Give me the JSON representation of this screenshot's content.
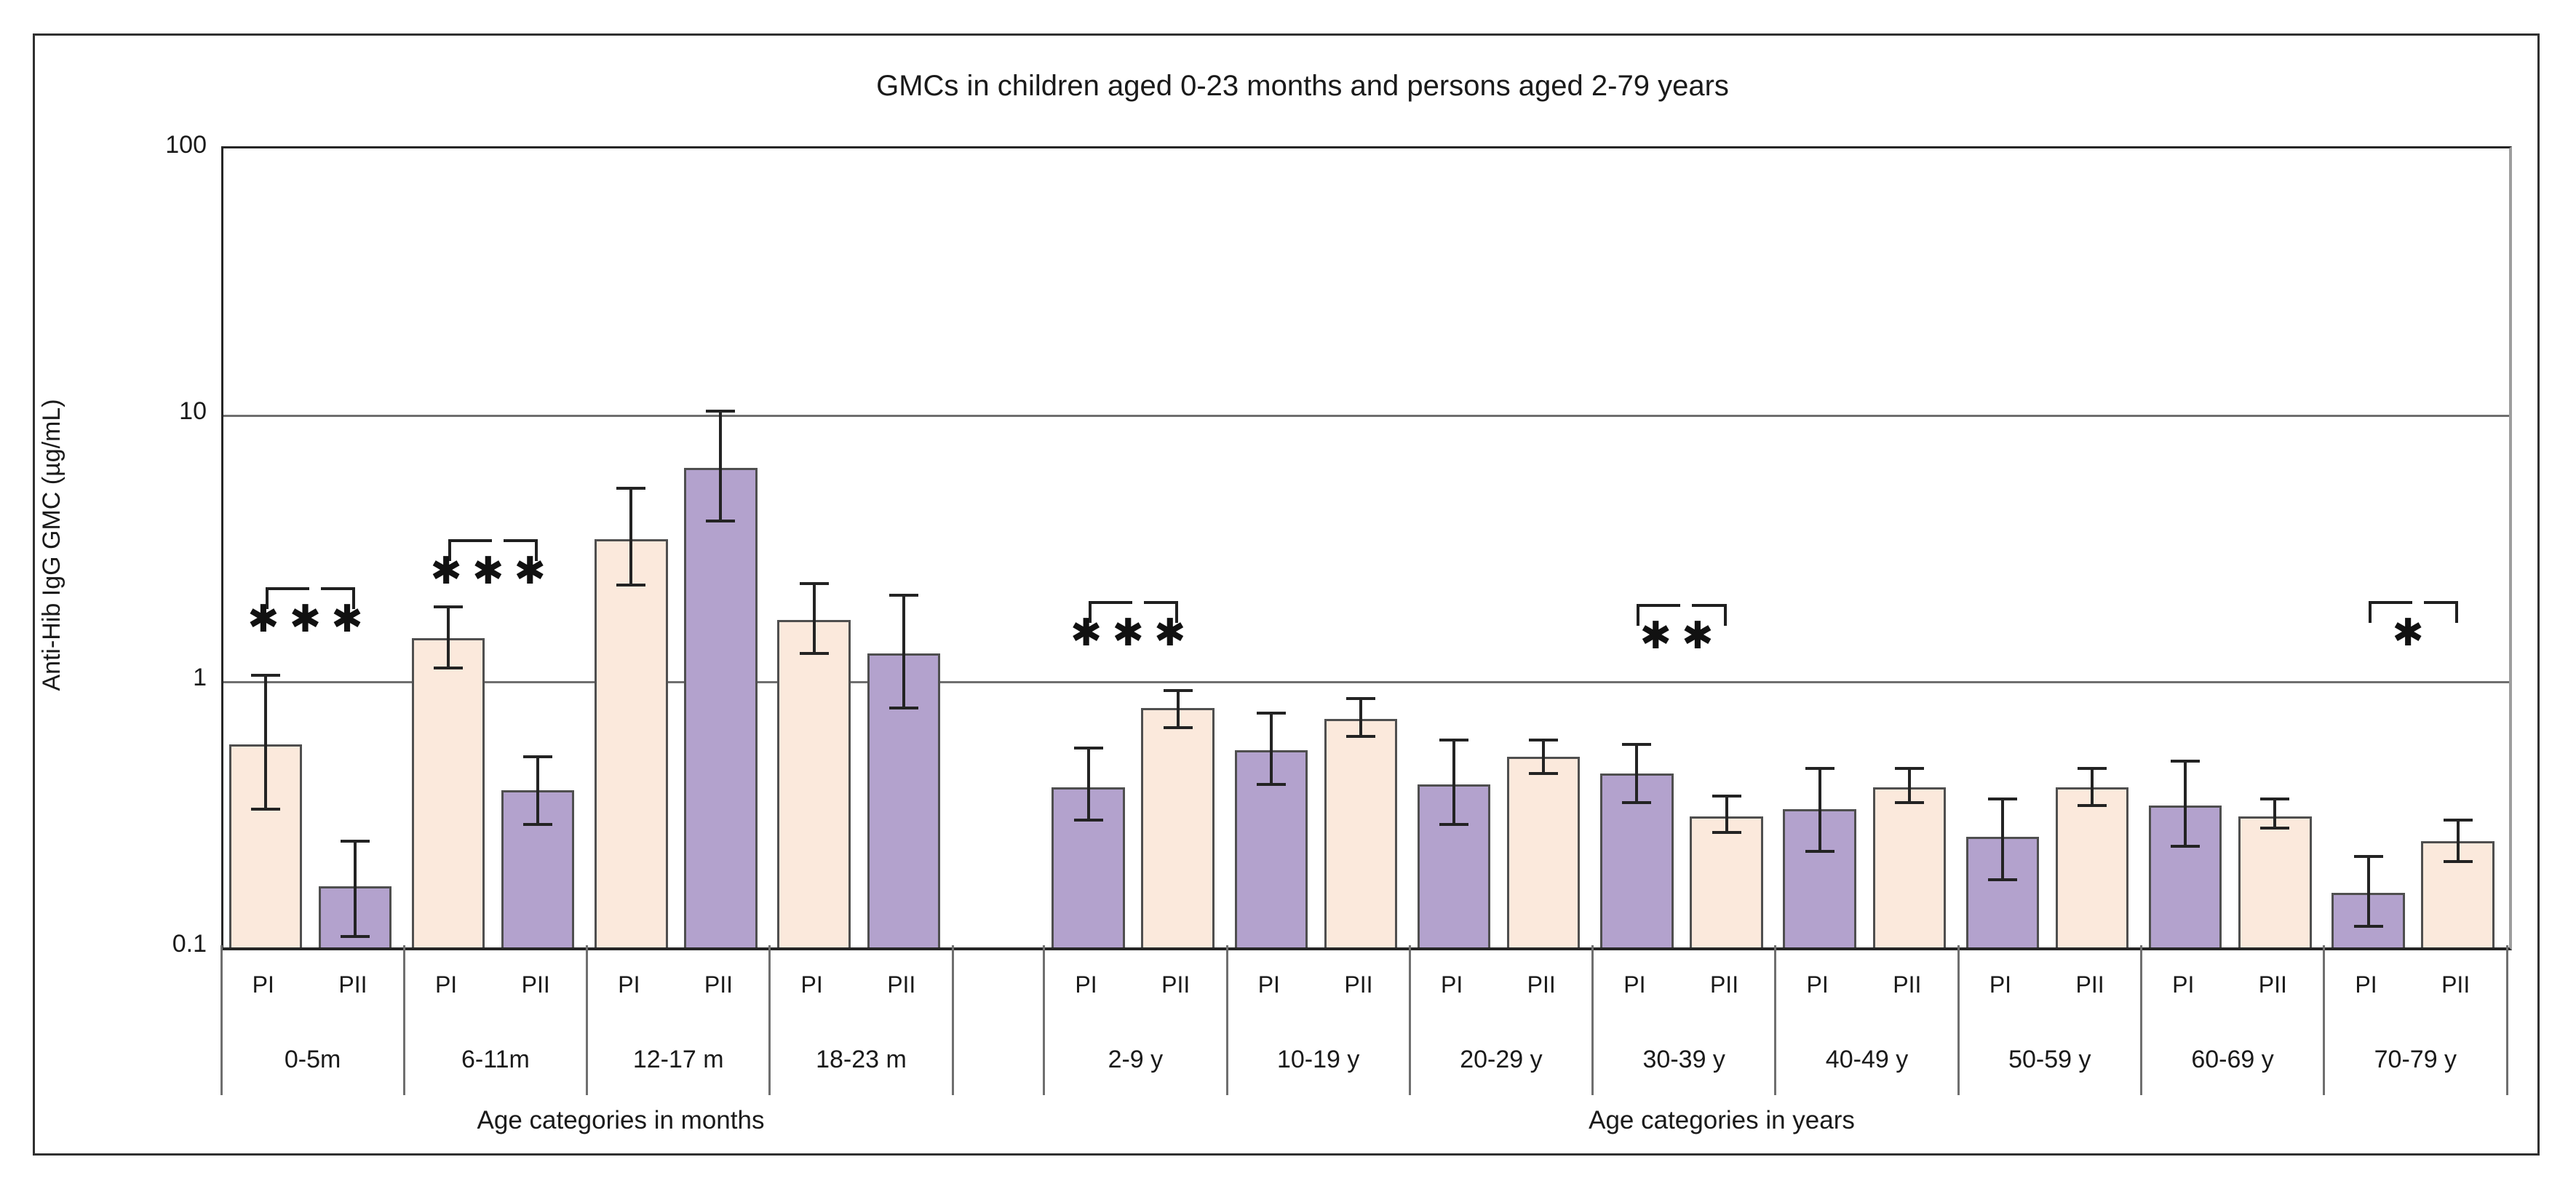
{
  "title": "GMCs in children aged 0-23 months and persons aged 2-79 years",
  "y_axis": {
    "label": "Anti-Hib IgG GMC (µg/mL)",
    "scale": "log",
    "min": 0.1,
    "max": 100,
    "ticks": [
      {
        "label": "100",
        "value": 100
      },
      {
        "label": "10",
        "value": 10
      },
      {
        "label": "1",
        "value": 1
      },
      {
        "label": "0.1",
        "value": 0.1
      }
    ],
    "gridline_values": [
      10,
      1
    ]
  },
  "x_axis": {
    "bar_row_labels": [
      "PI",
      "PII"
    ],
    "section_labels": {
      "months": "Age categories in months",
      "years": "Age categories in years"
    }
  },
  "palette": {
    "cream": "#fbe9dc",
    "purple": "#b3a2cd",
    "bar_border": "#4f4f4f",
    "error_bar": "#232323",
    "gridline": "#6f6f6f",
    "bracket": "#1f1f1f"
  },
  "series_colors": {
    "months": {
      "PI": "cream",
      "PII": "purple"
    },
    "years": {
      "PI": "purple",
      "PII": "cream"
    }
  },
  "chart_data": {
    "type": "bar",
    "y_scale": "log",
    "ylim": [
      0.1,
      100
    ],
    "title": "GMCs in children aged 0-23 months and persons aged 2-79 years",
    "ylabel": "Anti-Hib IgG GMC (µg/mL)",
    "xlabel_sections": [
      "Age categories in months",
      "Age categories in years"
    ],
    "legend": "none",
    "error_bars": "95% CI shown as whiskers",
    "groups": [
      {
        "category": "0-5m",
        "section": "months",
        "significance": "***",
        "bracket_value": 2.25,
        "bars": [
          {
            "series": "PI",
            "value": 0.58,
            "ci_low": 0.33,
            "ci_high": 1.05
          },
          {
            "series": "PII",
            "value": 0.17,
            "ci_low": 0.11,
            "ci_high": 0.25
          }
        ]
      },
      {
        "category": "6-11m",
        "section": "months",
        "significance": "***",
        "bracket_value": 3.4,
        "bars": [
          {
            "series": "PI",
            "value": 1.45,
            "ci_low": 1.12,
            "ci_high": 1.9
          },
          {
            "series": "PII",
            "value": 0.39,
            "ci_low": 0.29,
            "ci_high": 0.52
          }
        ]
      },
      {
        "category": "12-17 m",
        "section": "months",
        "significance": null,
        "bracket_value": null,
        "bars": [
          {
            "series": "PI",
            "value": 3.4,
            "ci_low": 2.3,
            "ci_high": 5.3
          },
          {
            "series": "PII",
            "value": 6.3,
            "ci_low": 4.0,
            "ci_high": 10.3
          }
        ]
      },
      {
        "category": "18-23 m",
        "section": "months",
        "significance": null,
        "bracket_value": null,
        "bars": [
          {
            "series": "PI",
            "value": 1.7,
            "ci_low": 1.27,
            "ci_high": 2.33
          },
          {
            "series": "PII",
            "value": 1.27,
            "ci_low": 0.79,
            "ci_high": 2.1
          }
        ]
      },
      {
        "category": "2-9 y",
        "section": "years",
        "significance": "***",
        "bracket_value": 2.0,
        "bars": [
          {
            "series": "PI",
            "value": 0.4,
            "ci_low": 0.3,
            "ci_high": 0.56
          },
          {
            "series": "PII",
            "value": 0.79,
            "ci_low": 0.67,
            "ci_high": 0.92
          }
        ]
      },
      {
        "category": "10-19 y",
        "section": "years",
        "significance": null,
        "bracket_value": null,
        "bars": [
          {
            "series": "PI",
            "value": 0.55,
            "ci_low": 0.41,
            "ci_high": 0.76
          },
          {
            "series": "PII",
            "value": 0.72,
            "ci_low": 0.62,
            "ci_high": 0.86
          }
        ]
      },
      {
        "category": "20-29 y",
        "section": "years",
        "significance": null,
        "bracket_value": null,
        "bars": [
          {
            "series": "PI",
            "value": 0.41,
            "ci_low": 0.29,
            "ci_high": 0.6
          },
          {
            "series": "PII",
            "value": 0.52,
            "ci_low": 0.45,
            "ci_high": 0.6
          }
        ]
      },
      {
        "category": "30-39 y",
        "section": "years",
        "significance": "**",
        "bracket_value": 1.95,
        "bars": [
          {
            "series": "PI",
            "value": 0.45,
            "ci_low": 0.35,
            "ci_high": 0.58
          },
          {
            "series": "PII",
            "value": 0.31,
            "ci_low": 0.27,
            "ci_high": 0.37
          }
        ]
      },
      {
        "category": "40-49 y",
        "section": "years",
        "significance": null,
        "bracket_value": null,
        "bars": [
          {
            "series": "PI",
            "value": 0.33,
            "ci_low": 0.23,
            "ci_high": 0.47
          },
          {
            "series": "PII",
            "value": 0.4,
            "ci_low": 0.35,
            "ci_high": 0.47
          }
        ]
      },
      {
        "category": "50-59 y",
        "section": "years",
        "significance": null,
        "bracket_value": null,
        "bars": [
          {
            "series": "PI",
            "value": 0.26,
            "ci_low": 0.18,
            "ci_high": 0.36
          },
          {
            "series": "PII",
            "value": 0.4,
            "ci_low": 0.34,
            "ci_high": 0.47
          }
        ]
      },
      {
        "category": "60-69 y",
        "section": "years",
        "significance": null,
        "bracket_value": null,
        "bars": [
          {
            "series": "PI",
            "value": 0.34,
            "ci_low": 0.24,
            "ci_high": 0.5
          },
          {
            "series": "PII",
            "value": 0.31,
            "ci_low": 0.28,
            "ci_high": 0.36
          }
        ]
      },
      {
        "category": "70-79 y",
        "section": "years",
        "significance": "*",
        "bracket_value": 2.0,
        "bars": [
          {
            "series": "PI",
            "value": 0.16,
            "ci_low": 0.12,
            "ci_high": 0.22
          },
          {
            "series": "PII",
            "value": 0.25,
            "ci_low": 0.21,
            "ci_high": 0.3
          }
        ]
      }
    ]
  }
}
